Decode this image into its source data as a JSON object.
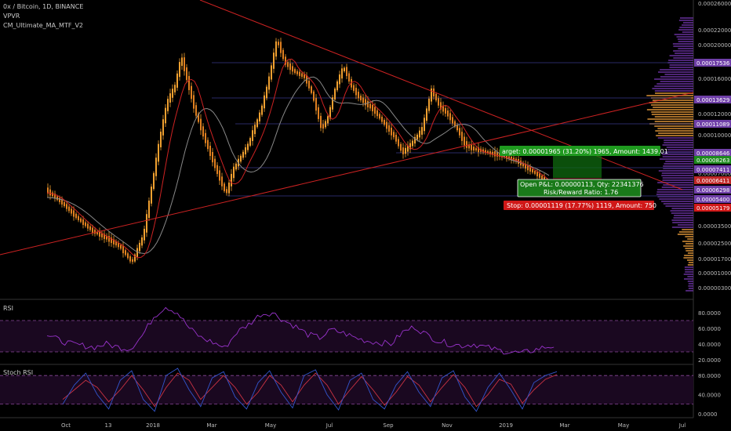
{
  "legend": {
    "symbol": "0x / Bitcoin, 1D, BINANCE",
    "indicator1": "VPVR",
    "indicator2": "CM_Ultimate_MA_MTF_V2"
  },
  "panes": {
    "rsi_label": "RSI",
    "stoch_label": "Stoch RSI"
  },
  "colors": {
    "background": "#000000",
    "candle_up": "#f0a030",
    "candle_down": "#e08020",
    "ma_fast": "#cc2222",
    "ma_slow": "#888888",
    "trendline": "#cc2222",
    "support_line": "#2a2a66",
    "volume_profile": "#5a2a8a",
    "volume_profile_hi": "#c08030",
    "rsi_line": "#9933cc",
    "rsi_band": "#1a0820",
    "stoch_k": "#3355cc",
    "stoch_d": "#cc3344",
    "target_box": "#0f6a0f",
    "stop_box": "#6a0f0f"
  },
  "chart_data": [
    {
      "type": "candlestick",
      "pane": "price",
      "x_tick_labels": [
        "Oct",
        "13",
        "2018",
        "Mar",
        "May",
        "Jul",
        "Sep",
        "Nov",
        "2019",
        "Mar",
        "May",
        "Jul"
      ],
      "y_axis_ticks": [
        "0.00026000",
        "0.00022000",
        "0.00020000",
        "0.00016000",
        "0.00012000",
        "0.00010000",
        "0.00007000",
        "0.00003500",
        "0.00002500",
        "0.00001700",
        "0.00001000",
        "0.00000300"
      ],
      "price_level_badges": [
        {
          "text": "0.00017536",
          "color": "#6f3fa8"
        },
        {
          "text": "0.00013629",
          "color": "#6f3fa8"
        },
        {
          "text": "0.00011089",
          "color": "#6f3fa8"
        },
        {
          "text": "0.00008646",
          "color": "#6f3fa8"
        },
        {
          "text": "0.00008263",
          "color": "#1e8a1e"
        },
        {
          "text": "0.00007411",
          "color": "#6f3fa8"
        },
        {
          "text": "0.00006411",
          "color": "#c02828"
        },
        {
          "text": "0.00006298",
          "color": "#6f3fa8"
        },
        {
          "text": "0.00005400",
          "color": "#6f3fa8"
        },
        {
          "text": "0.00005179",
          "color": "#d01818"
        }
      ],
      "series_close_approx": [
        6.4e-05,
        5.6e-05,
        4.4e-05,
        3.6e-05,
        3e-05,
        3e-05,
        2.4e-05,
        1.6e-05,
        3.4e-05,
        8e-05,
        0.00015,
        0.00018,
        0.00013,
        0.0001,
        8e-05,
        6e-05,
        9.5e-05,
        0.00013,
        0.000175,
        0.00019,
        0.000165,
        0.00016,
        0.00013,
        0.00011,
        0.00015,
        0.000135,
        0.00012,
        0.000105,
        9.5e-05,
        9.2e-05,
        0.00011,
        0.00013,
        0.00012,
        0.0001,
        9e-05,
        8.4e-05,
        8.6e-05,
        8.2e-05,
        7.8e-05,
        7.2e-05
      ],
      "position_annotations": {
        "target": "arget: 0.00001965 (31.20%) 1965, Amount: 1439.01",
        "open_pl": "Open P&L: 0.00000113, Qty: 22341376",
        "risk_reward": "Risk/Reward Ratio: 1.76",
        "stop": "Stop: 0.00001119 (17.77%) 1119, Amount: 750"
      }
    },
    {
      "type": "line",
      "pane": "rsi",
      "y_axis_ticks": [
        "80.0000",
        "60.0000",
        "40.0000",
        "20.0000"
      ],
      "band": [
        30,
        70
      ],
      "ylim": [
        15,
        95
      ],
      "values": [
        52,
        45,
        40,
        38,
        36,
        40,
        36,
        34,
        50,
        75,
        88,
        80,
        60,
        48,
        42,
        35,
        55,
        65,
        78,
        80,
        70,
        62,
        52,
        48,
        58,
        54,
        48,
        44,
        42,
        40,
        55,
        62,
        52,
        44,
        40,
        38,
        40,
        36,
        32,
        30,
        28,
        32,
        36,
        38
      ]
    },
    {
      "type": "line",
      "pane": "stoch_rsi",
      "y_axis_ticks": [
        "80.0000",
        "40.0000",
        "0.0000"
      ],
      "band": [
        20,
        80
      ],
      "ylim": [
        -5,
        100
      ],
      "k_values": [
        20,
        60,
        85,
        40,
        10,
        70,
        90,
        30,
        5,
        80,
        95,
        50,
        15,
        75,
        88,
        35,
        10,
        65,
        90,
        45,
        12,
        80,
        92,
        40,
        8,
        70,
        85,
        30,
        10,
        60,
        88,
        45,
        15,
        75,
        90,
        35,
        5,
        55,
        85,
        50,
        10,
        65,
        80,
        88
      ],
      "d_values": [
        30,
        50,
        70,
        55,
        25,
        50,
        80,
        50,
        15,
        55,
        85,
        70,
        30,
        55,
        80,
        55,
        20,
        45,
        80,
        60,
        25,
        60,
        85,
        60,
        20,
        50,
        78,
        50,
        18,
        45,
        78,
        60,
        25,
        55,
        82,
        55,
        15,
        40,
        72,
        62,
        22,
        50,
        72,
        82
      ]
    }
  ]
}
